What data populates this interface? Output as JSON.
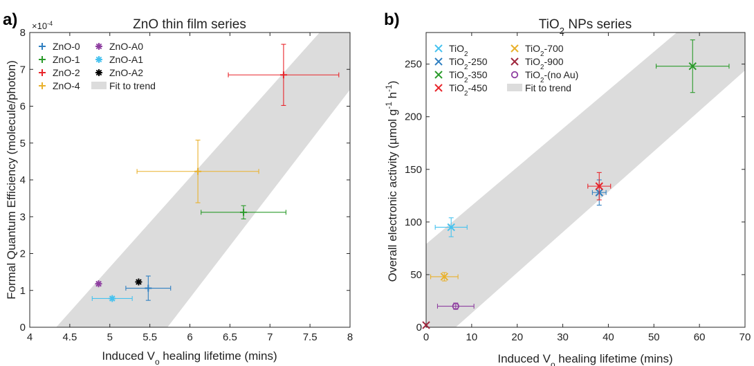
{
  "chart_data": [
    {
      "panel_label": "a)",
      "type": "scatter",
      "title": "ZnO thin film series",
      "xlabel": "Induced V",
      "xlabel_sub": "o",
      "xlabel_tail": " healing lifetime (mins)",
      "ylabel": "Formal Quantum Efficiency (molecule/photon)",
      "y_multiplier": "×10",
      "y_multiplier_exp": "-4",
      "xlim": [
        4,
        8
      ],
      "ylim": [
        0,
        8
      ],
      "xticks": [
        "4",
        "4.5",
        "5",
        "5.5",
        "6",
        "6.5",
        "7",
        "7.5",
        "8"
      ],
      "yticks": [
        "0",
        "1",
        "2",
        "3",
        "4",
        "5",
        "6",
        "7",
        "8"
      ],
      "grid": false,
      "legend_position": "top-left",
      "legend_columns": 2,
      "legend": [
        {
          "text": "ZnO-0",
          "marker": "plus",
          "color": "#2f7fc1"
        },
        {
          "text": "ZnO-A0",
          "marker": "asterisk",
          "color": "#8e3ea0"
        },
        {
          "text": "ZnO-1",
          "marker": "plus",
          "color": "#2a9a2a"
        },
        {
          "text": "ZnO-A1",
          "marker": "asterisk",
          "color": "#46c2ef"
        },
        {
          "text": "ZnO-2",
          "marker": "plus",
          "color": "#e8242a"
        },
        {
          "text": "ZnO-A2",
          "marker": "asterisk",
          "color": "#000000"
        },
        {
          "text": "ZnO-4",
          "marker": "plus",
          "color": "#e9b12c"
        },
        {
          "text": "Fit to trend",
          "marker": "band",
          "color": "#dcdcdc"
        }
      ],
      "series": [
        {
          "name": "ZnO-0",
          "marker": "plus",
          "color": "#2f7fc1",
          "x": 5.48,
          "y": 1.06,
          "xerr": 0.28,
          "yerr": 0.33
        },
        {
          "name": "ZnO-1",
          "marker": "plus",
          "color": "#2a9a2a",
          "x": 6.67,
          "y": 3.12,
          "xerr": 0.53,
          "yerr": 0.18
        },
        {
          "name": "ZnO-2",
          "marker": "plus",
          "color": "#e8242a",
          "x": 7.17,
          "y": 6.85,
          "xerr": 0.69,
          "yerr": 0.83
        },
        {
          "name": "ZnO-4",
          "marker": "plus",
          "color": "#e9b12c",
          "x": 6.1,
          "y": 4.23,
          "xerr": 0.76,
          "yerr": 0.85
        },
        {
          "name": "ZnO-A0",
          "marker": "asterisk",
          "color": "#8e3ea0",
          "x": 4.86,
          "y": 1.18,
          "xerr": 0,
          "yerr": 0
        },
        {
          "name": "ZnO-A1",
          "marker": "asterisk",
          "color": "#46c2ef",
          "x": 5.03,
          "y": 0.78,
          "xerr": 0.25,
          "yerr": 0
        },
        {
          "name": "ZnO-A2",
          "marker": "asterisk",
          "color": "#000000",
          "x": 5.36,
          "y": 1.23,
          "xerr": 0,
          "yerr": 0
        }
      ],
      "fit_band": {
        "color": "#dcdcdc",
        "lower_edge": [
          [
            5.72,
            0
          ],
          [
            8.0,
            6.45
          ]
        ],
        "upper_edge": [
          [
            4.33,
            0
          ],
          [
            7.62,
            8.0
          ]
        ]
      }
    },
    {
      "panel_label": "b)",
      "type": "scatter",
      "title": "TiO",
      "title_sub": "2",
      "title_tail": " NPs series",
      "xlabel": "Induced V",
      "xlabel_sub": "o",
      "xlabel_tail": " healing lifetime (mins)",
      "ylabel": "Overall electronic activity (µmol g",
      "ylabel_sup1": "-1",
      "ylabel_mid": " h",
      "ylabel_sup2": "-1",
      "ylabel_tail": ")",
      "xlim": [
        0,
        70
      ],
      "ylim": [
        0,
        280
      ],
      "xticks": [
        "0",
        "10",
        "20",
        "30",
        "40",
        "50",
        "60",
        "70"
      ],
      "yticks": [
        "0",
        "50",
        "100",
        "150",
        "200",
        "250"
      ],
      "grid": false,
      "legend_position": "top-left",
      "legend_columns": 2,
      "legend": [
        {
          "text": "TiO",
          "sub": "2",
          "tail": "",
          "marker": "x",
          "color": "#46c2ef"
        },
        {
          "text": "TiO",
          "sub": "2",
          "tail": "-700",
          "marker": "x",
          "color": "#e9b12c"
        },
        {
          "text": "TiO",
          "sub": "2",
          "tail": "-250",
          "marker": "x",
          "color": "#2f7fc1"
        },
        {
          "text": "TiO",
          "sub": "2",
          "tail": "-900",
          "marker": "x",
          "color": "#a0283e"
        },
        {
          "text": "TiO",
          "sub": "2",
          "tail": "-350",
          "marker": "x",
          "color": "#2a9a2a"
        },
        {
          "text": "TiO",
          "sub": "2",
          "tail": "-(no Au)",
          "marker": "circle",
          "color": "#8e3ea0"
        },
        {
          "text": "TiO",
          "sub": "2",
          "tail": "-450",
          "marker": "x",
          "color": "#e8242a"
        },
        {
          "text": "Fit to trend",
          "sub": "",
          "tail": "",
          "marker": "band",
          "color": "#dcdcdc"
        }
      ],
      "series": [
        {
          "name": "TiO2",
          "marker": "x",
          "color": "#46c2ef",
          "x": 5.5,
          "y": 95,
          "xerr": 3.5,
          "yerr": 9
        },
        {
          "name": "TiO2-250",
          "marker": "x",
          "color": "#2f7fc1",
          "x": 38,
          "y": 128,
          "xerr": 1.5,
          "yerr": 12
        },
        {
          "name": "TiO2-350",
          "marker": "x",
          "color": "#2a9a2a",
          "x": 58.5,
          "y": 248,
          "xerr": 8,
          "yerr": 25
        },
        {
          "name": "TiO2-450",
          "marker": "x",
          "color": "#e8242a",
          "x": 38,
          "y": 134,
          "xerr": 2.5,
          "yerr": 13
        },
        {
          "name": "TiO2-700",
          "marker": "x",
          "color": "#e9b12c",
          "x": 4,
          "y": 48,
          "xerr": 3,
          "yerr": 4
        },
        {
          "name": "TiO2-900",
          "marker": "x",
          "color": "#a0283e",
          "x": 0,
          "y": 2,
          "xerr": 0,
          "yerr": 0
        },
        {
          "name": "TiO2-(no Au)",
          "marker": "circle",
          "color": "#8e3ea0",
          "x": 6.5,
          "y": 20,
          "xerr": 4,
          "yerr": 3
        }
      ],
      "fit_band": {
        "color": "#dcdcdc",
        "lower_edge": [
          [
            6.5,
            0
          ],
          [
            70,
            244
          ]
        ],
        "upper_edge": [
          [
            0,
            79
          ],
          [
            55,
            280
          ]
        ]
      }
    }
  ]
}
